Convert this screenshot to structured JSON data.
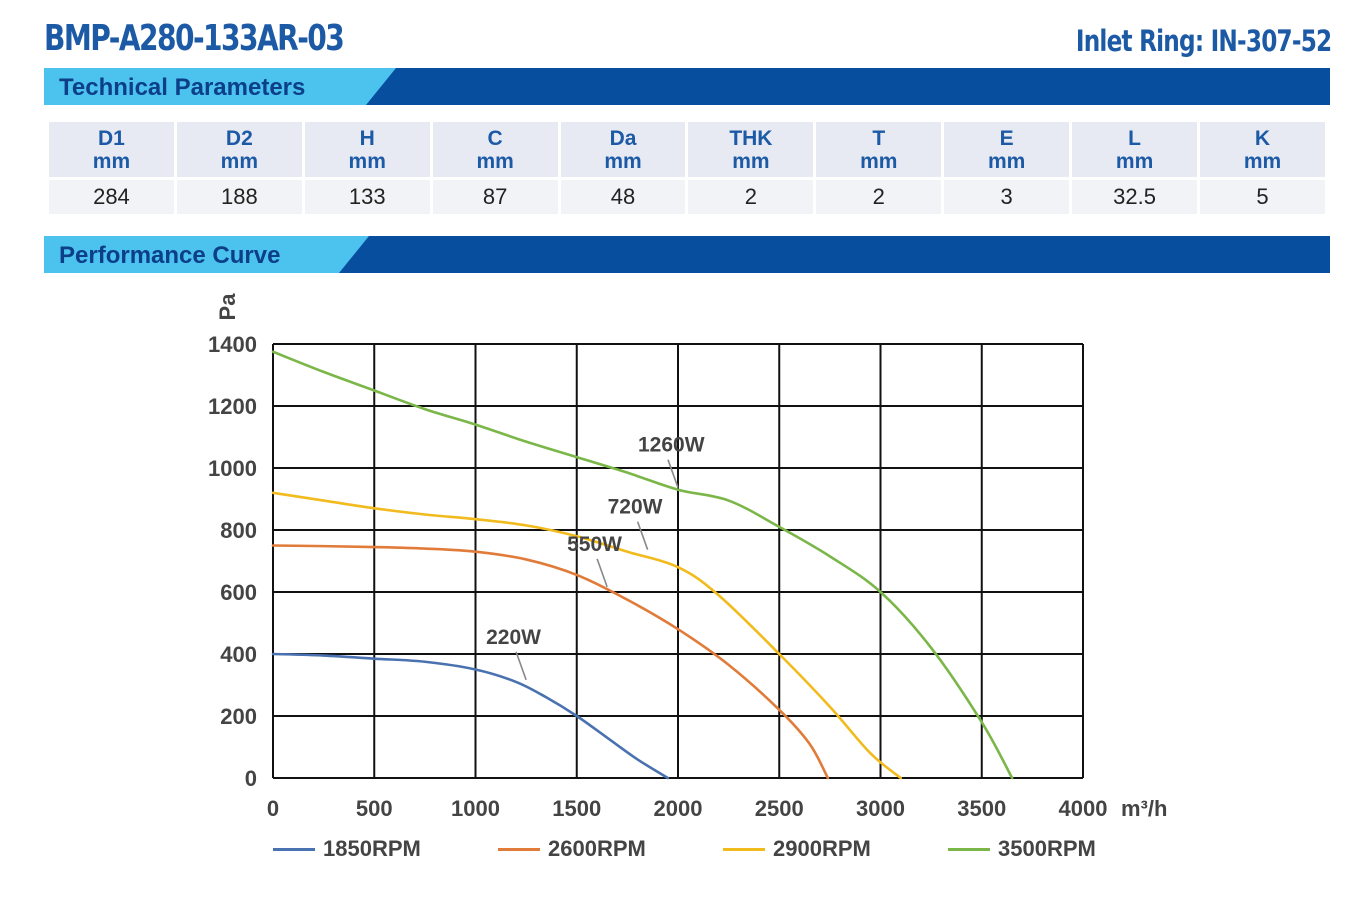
{
  "header": {
    "model": "BMP-A280-133AR-03",
    "inlet_ring": "Inlet Ring: IN-307-52"
  },
  "sections": {
    "technical": "Technical Parameters",
    "performance": "Performance Curve"
  },
  "colors": {
    "brand_dark": "#074e9f",
    "brand_light": "#4cc3ef",
    "title_text": "#1c5aa6"
  },
  "params": {
    "headers": [
      {
        "name": "D1",
        "unit": "mm"
      },
      {
        "name": "D2",
        "unit": "mm"
      },
      {
        "name": "H",
        "unit": "mm"
      },
      {
        "name": "C",
        "unit": "mm"
      },
      {
        "name": "Da",
        "unit": "mm"
      },
      {
        "name": "THK",
        "unit": "mm"
      },
      {
        "name": "T",
        "unit": "mm"
      },
      {
        "name": "E",
        "unit": "mm"
      },
      {
        "name": "L",
        "unit": "mm"
      },
      {
        "name": "K",
        "unit": "mm"
      }
    ],
    "values": [
      "284",
      "188",
      "133",
      "87",
      "48",
      "2",
      "2",
      "3",
      "32.5",
      "5"
    ]
  },
  "chart_data": {
    "type": "line",
    "title": "",
    "xlabel": "m³/h",
    "ylabel": "Pa",
    "xlim": [
      0,
      4000
    ],
    "ylim": [
      0,
      1400
    ],
    "x_ticks": [
      "0",
      "500",
      "1000",
      "1500",
      "2000",
      "2500",
      "3000",
      "3500",
      "4000"
    ],
    "y_ticks": [
      "0",
      "200",
      "400",
      "600",
      "800",
      "1000",
      "1200",
      "1400"
    ],
    "grid": true,
    "legend_position": "bottom",
    "series": [
      {
        "name": "1850RPM",
        "color": "#4a72b0",
        "x": [
          0,
          250,
          500,
          750,
          1000,
          1200,
          1350,
          1500,
          1650,
          1800,
          1950
        ],
        "y": [
          400,
          395,
          385,
          375,
          350,
          310,
          260,
          200,
          130,
          60,
          0
        ]
      },
      {
        "name": "2600RPM",
        "color": "#e07b39",
        "x": [
          0,
          250,
          500,
          750,
          1000,
          1250,
          1500,
          1750,
          2000,
          2250,
          2500,
          2650,
          2740
        ],
        "y": [
          750,
          748,
          745,
          740,
          730,
          705,
          655,
          575,
          480,
          365,
          220,
          110,
          0
        ]
      },
      {
        "name": "2900RPM",
        "color": "#f2bb1d",
        "x": [
          0,
          250,
          500,
          750,
          1000,
          1250,
          1500,
          1750,
          2000,
          2200,
          2500,
          2750,
          2950,
          3100
        ],
        "y": [
          920,
          895,
          870,
          850,
          835,
          815,
          780,
          730,
          680,
          590,
          400,
          230,
          80,
          0
        ]
      },
      {
        "name": "3500RPM",
        "color": "#7ab648",
        "x": [
          0,
          250,
          500,
          750,
          1000,
          1250,
          1500,
          1750,
          2000,
          2250,
          2500,
          2750,
          3000,
          3250,
          3500,
          3650
        ],
        "y": [
          1375,
          1310,
          1250,
          1190,
          1140,
          1085,
          1035,
          985,
          930,
          895,
          810,
          715,
          600,
          420,
          180,
          0
        ]
      }
    ],
    "annotations": [
      {
        "text": "220W",
        "x": 1250,
        "y": 310
      },
      {
        "text": "550W",
        "x": 1650,
        "y": 610
      },
      {
        "text": "720W",
        "x": 1850,
        "y": 730
      },
      {
        "text": "1260W",
        "x": 2000,
        "y": 930
      }
    ]
  }
}
